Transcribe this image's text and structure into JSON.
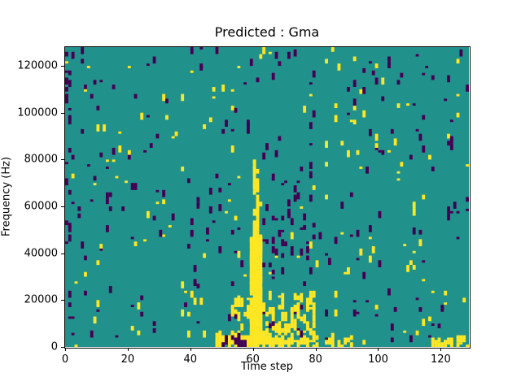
{
  "window": {
    "background": "#ffffff"
  },
  "chart_data": {
    "type": "heatmap",
    "title": "Predicted : Gma",
    "xlabel": "Time step",
    "ylabel": "Frequency (Hz)",
    "x_range": [
      0,
      129
    ],
    "y_range": [
      0,
      128000
    ],
    "xticks": {
      "values": [
        0,
        20,
        40,
        60,
        80,
        100,
        120
      ],
      "labels": [
        "0",
        "20",
        "40",
        "60",
        "80",
        "100",
        "120"
      ]
    },
    "yticks": {
      "values": [
        0,
        20000,
        40000,
        60000,
        80000,
        100000,
        120000
      ],
      "labels": [
        "0",
        "20000",
        "40000",
        "60000",
        "80000",
        "100000",
        "120000"
      ]
    },
    "grid": {
      "cols": 129,
      "rows": 128
    },
    "colors": {
      "teal": "#21918c",
      "yellow": "#fde725",
      "dark": "#440154",
      "spine": "#000000"
    },
    "legend": "none",
    "description": "Sparse spectrogram-like heatmap: teal background with scattered yellow and dark-purple cells; dense yellow vertical band near time step 60 below ~80 kHz, yellow clusters along the bottom edge near steps 48-90 and 117-129, and scattered dark cells throughout.",
    "regions": [
      {
        "name": "scatter-yellow",
        "x0": 0,
        "x1": 129,
        "y0": 0,
        "y1": 128,
        "density": 0.009,
        "color": "yellow",
        "seed": 11,
        "hmin": 1,
        "hmax": 3
      },
      {
        "name": "scatter-dark",
        "x0": 0,
        "x1": 129,
        "y0": 0,
        "y1": 128,
        "density": 0.013,
        "color": "dark",
        "seed": 22,
        "hmin": 1,
        "hmax": 3
      },
      {
        "name": "left-edge-dark",
        "x0": 0,
        "x1": 3,
        "y0": 0,
        "y1": 128,
        "density": 0.06,
        "color": "dark",
        "seed": 33,
        "hmin": 1,
        "hmax": 3
      },
      {
        "name": "vband-yellow-lower",
        "x0": 59,
        "x1": 63,
        "y0": 2,
        "y1": 46,
        "density": 0.75,
        "color": "yellow",
        "seed": 44,
        "hmin": 2,
        "hmax": 5
      },
      {
        "name": "vband-yellow-upper",
        "x0": 60,
        "x1": 62,
        "y0": 46,
        "y1": 82,
        "density": 0.35,
        "color": "yellow",
        "seed": 45,
        "hmin": 2,
        "hmax": 4
      },
      {
        "name": "bottom-cluster-yellow",
        "x0": 53,
        "x1": 80,
        "y0": 0,
        "y1": 22,
        "density": 0.18,
        "color": "yellow",
        "seed": 55,
        "hmin": 1,
        "hmax": 4
      },
      {
        "name": "bottom-run-yellow-1",
        "x0": 48,
        "x1": 64,
        "y0": 0,
        "y1": 4,
        "density": 0.5,
        "color": "yellow",
        "seed": 66,
        "hmin": 2,
        "hmax": 4
      },
      {
        "name": "bottom-run-yellow-2",
        "x0": 68,
        "x1": 92,
        "y0": 0,
        "y1": 4,
        "density": 0.35,
        "color": "yellow",
        "seed": 77,
        "hmin": 1,
        "hmax": 3
      },
      {
        "name": "bottom-run-yellow-3",
        "x0": 117,
        "x1": 129,
        "y0": 0,
        "y1": 3,
        "density": 0.45,
        "color": "yellow",
        "seed": 88,
        "hmin": 1,
        "hmax": 3
      },
      {
        "name": "bottom-dark-run",
        "x0": 50,
        "x1": 58,
        "y0": 0,
        "y1": 4,
        "density": 0.35,
        "color": "dark",
        "seed": 90,
        "hmin": 1,
        "hmax": 3
      },
      {
        "name": "mid-dark-cluster",
        "x0": 63,
        "x1": 80,
        "y0": 28,
        "y1": 72,
        "density": 0.05,
        "color": "dark",
        "seed": 99,
        "hmin": 1,
        "hmax": 3
      }
    ]
  }
}
